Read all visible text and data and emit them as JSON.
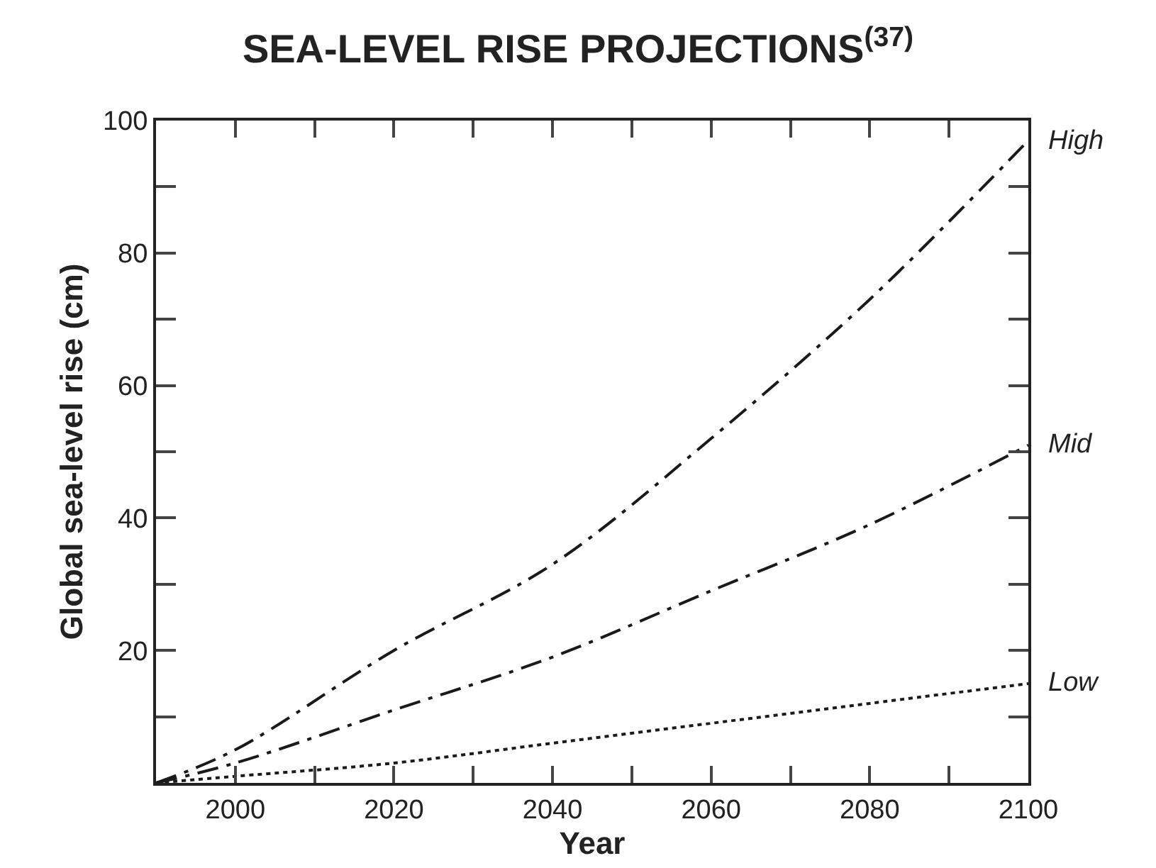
{
  "chart_data": {
    "type": "line",
    "title": "SEA-LEVEL RISE PROJECTIONS$^{(37)}$",
    "xlabel": "Year",
    "ylabel": "Global sea-level rise (cm)",
    "x": [
      1990,
      2000,
      2020,
      2040,
      2060,
      2080,
      2100
    ],
    "series": [
      {
        "name": "High",
        "color": "#1a1a1a",
        "line_style": "dashdot",
        "values": [
          0,
          5,
          20,
          33,
          52,
          73,
          97
        ]
      },
      {
        "name": "Mid",
        "color": "#1a1a1a",
        "line_style": "dashdot",
        "values": [
          0,
          3,
          11,
          19,
          29,
          39,
          51
        ]
      },
      {
        "name": "Low",
        "color": "#1a1a1a",
        "line_style": "dotted",
        "values": [
          0,
          1,
          3,
          6,
          9,
          12,
          15
        ]
      }
    ],
    "xlim": [
      1990,
      2100
    ],
    "xticks": [
      {
        "value": 1990,
        "label": null
      },
      2000,
      {
        "value": 2010,
        "label": null
      },
      2020,
      {
        "value": 2030,
        "label": null
      },
      2040,
      {
        "value": 2050,
        "label": null
      },
      2060,
      {
        "value": 2070,
        "label": null
      },
      2080,
      {
        "value": 2090,
        "label": null
      },
      2100
    ],
    "ylim": [
      0,
      100
    ],
    "yticks": [
      {
        "value": 0,
        "label": null
      },
      {
        "value": 10,
        "label": null
      },
      20,
      {
        "value": 30,
        "label": null
      },
      40,
      {
        "value": 50,
        "label": null
      },
      60,
      {
        "value": 70,
        "label": null
      },
      80,
      {
        "value": 90,
        "label": null
      },
      100
    ],
    "legend": false,
    "marker": "none"
  }
}
